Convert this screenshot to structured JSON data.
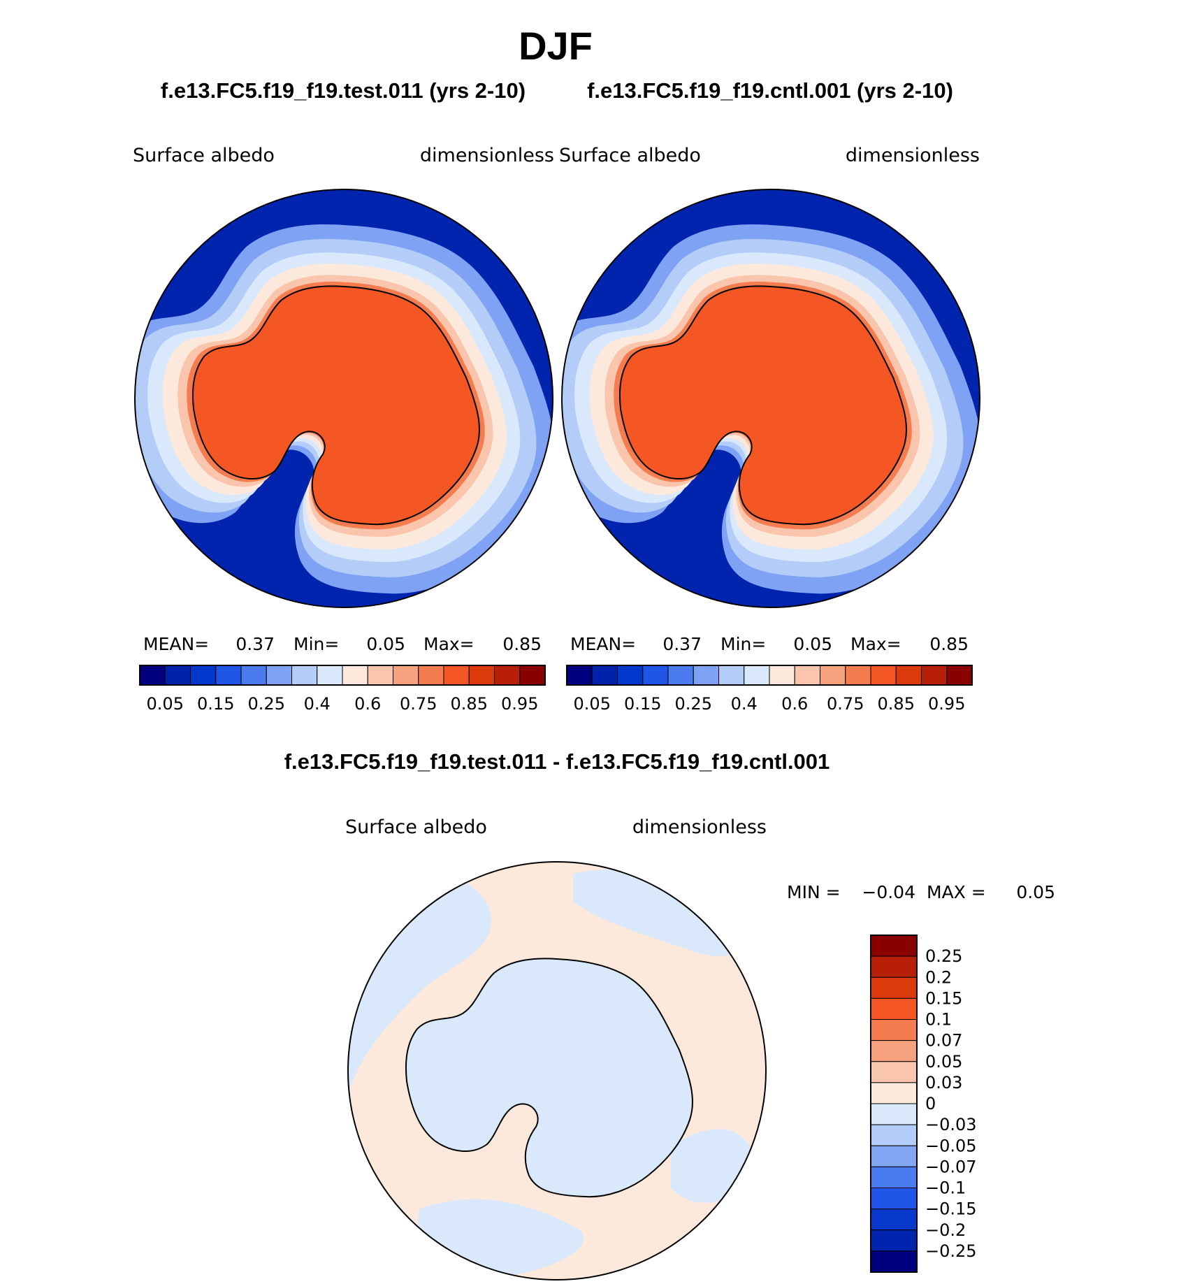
{
  "title": "DJF",
  "colors": {
    "abs_scale": [
      "#00007f",
      "#0022aa",
      "#0038cc",
      "#1f56e8",
      "#4a7cf0",
      "#7fa2f4",
      "#b3ccf8",
      "#d9e8fb",
      "#fde9dc",
      "#f9c6ad",
      "#f7a27e",
      "#f47c4f",
      "#f55724",
      "#dd3a0c",
      "#b81f08",
      "#8a0000"
    ],
    "diff_scale": [
      "#00007f",
      "#0024ad",
      "#0838cc",
      "#1f56e8",
      "#4a7cf0",
      "#82a6f4",
      "#b3ccf8",
      "#d9e8fb",
      "#fde9dc",
      "#f9c6ad",
      "#f7a27e",
      "#f47c4f",
      "#f55724",
      "#dd3a0c",
      "#b81f08",
      "#8a0000"
    ],
    "ocean": "#0024ad",
    "continent": "#f55724",
    "coastline": "#000000"
  },
  "chart_data": [
    {
      "type": "heatmap",
      "projection": "south-polar-stereographic",
      "case_title": "f.e13.FC5.f19_f19.test.011 (yrs 2-10)",
      "left_label": "Surface albedo",
      "right_label": "dimensionless",
      "stats": {
        "mean_label": "MEAN=",
        "mean": "0.37",
        "min_label": "Min=",
        "min": "0.05",
        "max_label": "Max=",
        "max": "0.85"
      },
      "colorbar": {
        "orientation": "horizontal",
        "levels": [
          "0.05",
          "0.1",
          "0.15",
          "0.2",
          "0.25",
          "0.3",
          "0.4",
          "0.5",
          "0.6",
          "0.7",
          "0.75",
          "0.8",
          "0.85",
          "0.9",
          "0.95"
        ],
        "tick_labels": [
          "0.05",
          "0.15",
          "0.25",
          "0.4",
          "0.6",
          "0.75",
          "0.85",
          "0.95"
        ]
      }
    },
    {
      "type": "heatmap",
      "projection": "south-polar-stereographic",
      "case_title": "f.e13.FC5.f19_f19.cntl.001 (yrs 2-10)",
      "left_label": "Surface albedo",
      "right_label": "dimensionless",
      "stats": {
        "mean_label": "MEAN=",
        "mean": "0.37",
        "min_label": "Min=",
        "min": "0.05",
        "max_label": "Max=",
        "max": "0.85"
      },
      "colorbar": {
        "orientation": "horizontal",
        "levels": [
          "0.05",
          "0.1",
          "0.15",
          "0.2",
          "0.25",
          "0.3",
          "0.4",
          "0.5",
          "0.6",
          "0.7",
          "0.75",
          "0.8",
          "0.85",
          "0.9",
          "0.95"
        ],
        "tick_labels": [
          "0.05",
          "0.15",
          "0.25",
          "0.4",
          "0.6",
          "0.75",
          "0.85",
          "0.95"
        ]
      }
    },
    {
      "type": "heatmap",
      "projection": "south-polar-stereographic",
      "case_title": "f.e13.FC5.f19_f19.test.011 - f.e13.FC5.f19_f19.cntl.001",
      "left_label": "Surface albedo",
      "right_label": "dimensionless",
      "stats": {
        "min_label": "MIN =",
        "min": "−0.04",
        "max_label": "MAX =",
        "max": "0.05"
      },
      "colorbar": {
        "orientation": "vertical",
        "tick_labels": [
          "0.25",
          "0.2",
          "0.15",
          "0.1",
          "0.07",
          "0.05",
          "0.03",
          "0",
          "−0.03",
          "−0.05",
          "−0.07",
          "−0.1",
          "−0.15",
          "−0.2",
          "−0.25"
        ]
      }
    }
  ]
}
